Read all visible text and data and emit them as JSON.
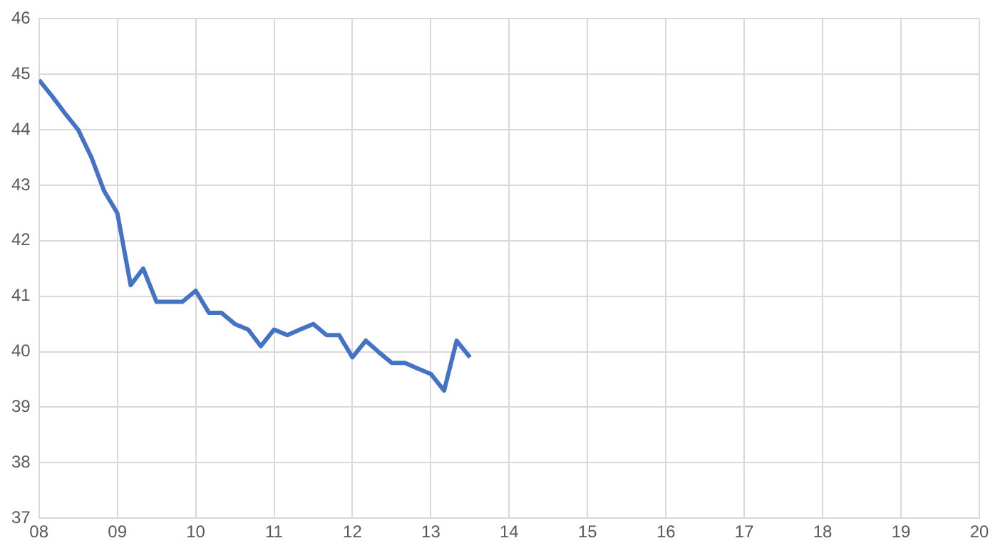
{
  "chart_data": {
    "type": "line",
    "x": [
      8,
      8.17,
      8.33,
      8.5,
      8.67,
      8.83,
      9,
      9.17,
      9.33,
      9.5,
      9.67,
      9.83,
      10,
      10.17,
      10.33,
      10.5,
      10.67,
      10.83,
      11,
      11.17,
      11.33,
      11.5,
      11.67,
      11.83,
      12,
      12.17,
      12.33,
      12.5,
      12.67,
      12.83,
      13,
      13.17,
      13.33,
      13.5
    ],
    "series": [
      {
        "color": "#4472c4",
        "values": [
          44.9,
          44.6,
          44.3,
          44.0,
          43.5,
          42.9,
          42.5,
          41.2,
          41.5,
          40.9,
          40.9,
          40.9,
          41.1,
          40.7,
          40.7,
          40.5,
          40.4,
          40.1,
          40.4,
          40.3,
          40.4,
          40.5,
          40.3,
          40.3,
          39.9,
          40.2,
          40.0,
          39.8,
          39.8,
          39.7,
          39.6,
          39.3,
          40.2,
          39.9
        ]
      }
    ],
    "xlim": [
      8,
      20
    ],
    "xticks": [
      {
        "value": 8,
        "label": "08"
      },
      {
        "value": 9,
        "label": "09"
      },
      10,
      11,
      12,
      13,
      14,
      15,
      16,
      17,
      18,
      19,
      20
    ],
    "ylim": [
      37,
      46
    ],
    "yticks": [
      37,
      38,
      39,
      40,
      41,
      42,
      43,
      44,
      45,
      46
    ],
    "grid": true,
    "legend": false,
    "marker": "none",
    "line_style": "solid"
  }
}
